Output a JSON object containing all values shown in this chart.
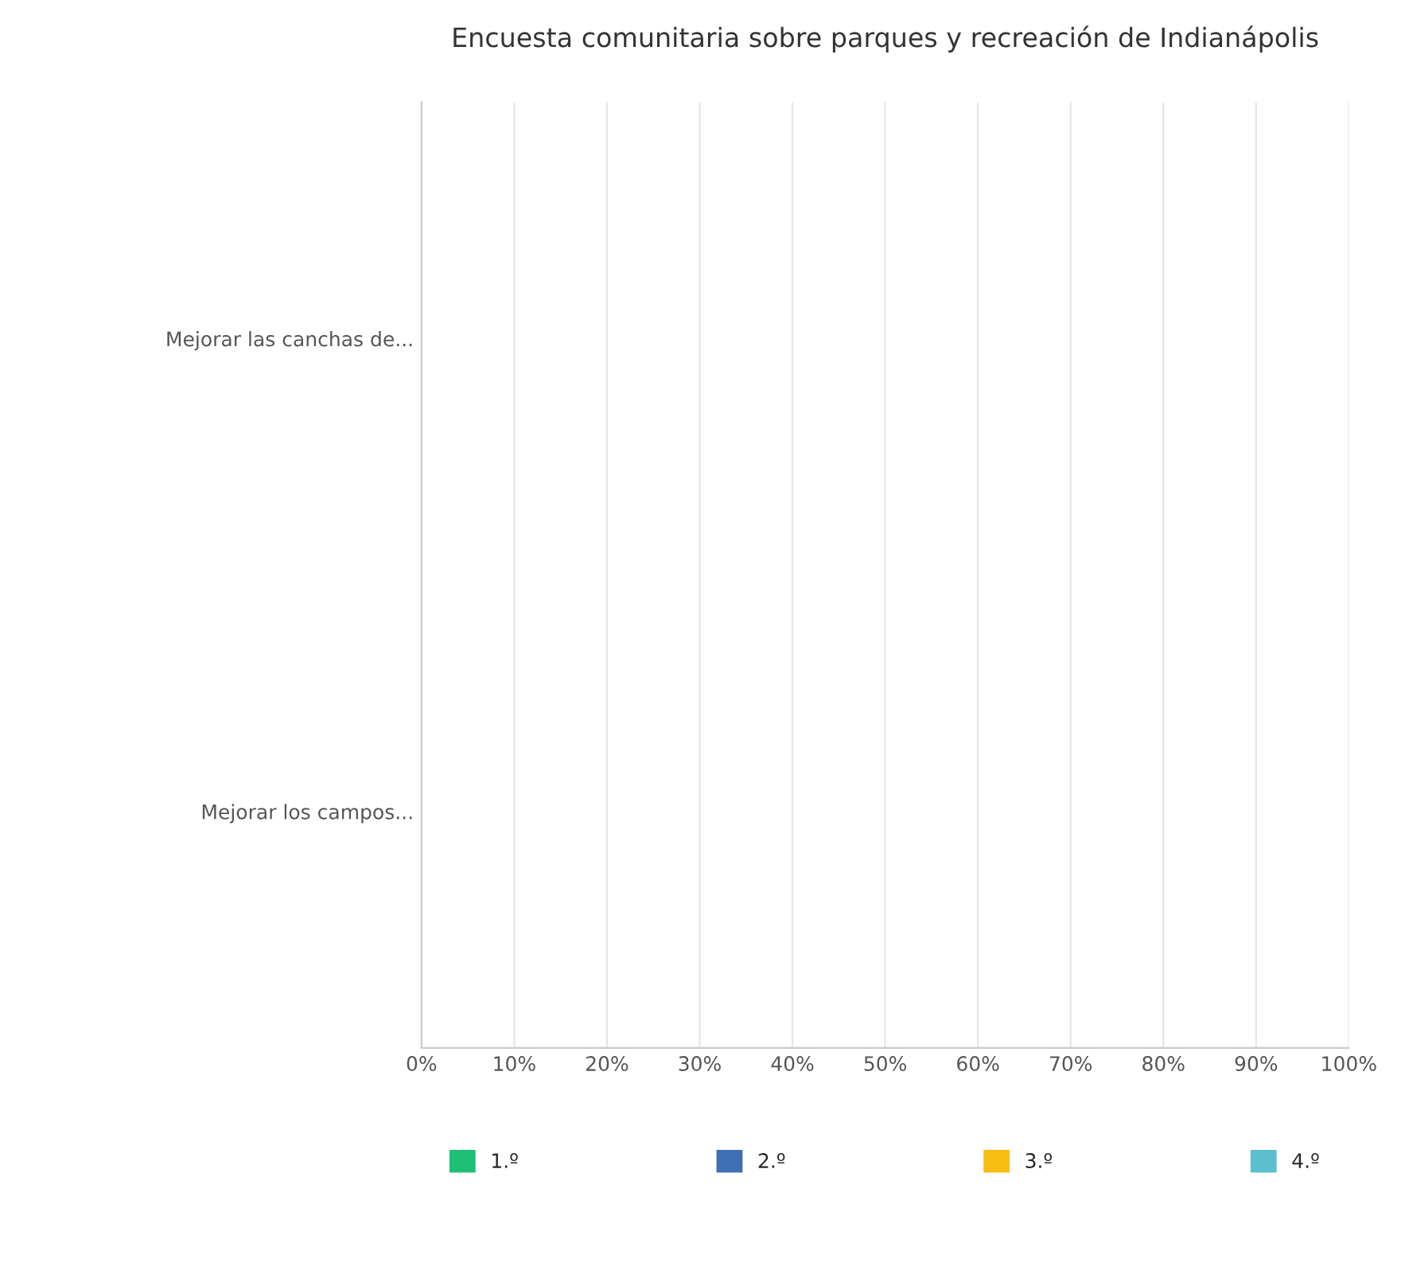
{
  "chart_data": {
    "type": "bar",
    "orientation": "horizontal",
    "title": "Encuesta comunitaria sobre parques y recreación de Indianápolis",
    "categories": [
      "Mejorar las canchas de...",
      "Mejorar los campos..."
    ],
    "series": [
      {
        "name": "1.º",
        "color": "#1fbf75",
        "values": [
          0,
          0
        ]
      },
      {
        "name": "2.º",
        "color": "#3f6fb6",
        "values": [
          0,
          0
        ]
      },
      {
        "name": "3.º",
        "color": "#f7bd13",
        "values": [
          0,
          0
        ]
      },
      {
        "name": "4.º",
        "color": "#5bbfce",
        "values": [
          0,
          0
        ]
      }
    ],
    "xlim": [
      0,
      100
    ],
    "xticks": [
      {
        "value": 0,
        "label": "0%"
      },
      {
        "value": 10,
        "label": "10%"
      },
      {
        "value": 20,
        "label": "20%"
      },
      {
        "value": 30,
        "label": "30%"
      },
      {
        "value": 40,
        "label": "40%"
      },
      {
        "value": 50,
        "label": "50%"
      },
      {
        "value": 60,
        "label": "60%"
      },
      {
        "value": 70,
        "label": "70%"
      },
      {
        "value": 80,
        "label": "80%"
      },
      {
        "value": 90,
        "label": "90%"
      },
      {
        "value": 100,
        "label": "100%"
      }
    ],
    "grid": "x",
    "legend": "bottom"
  }
}
